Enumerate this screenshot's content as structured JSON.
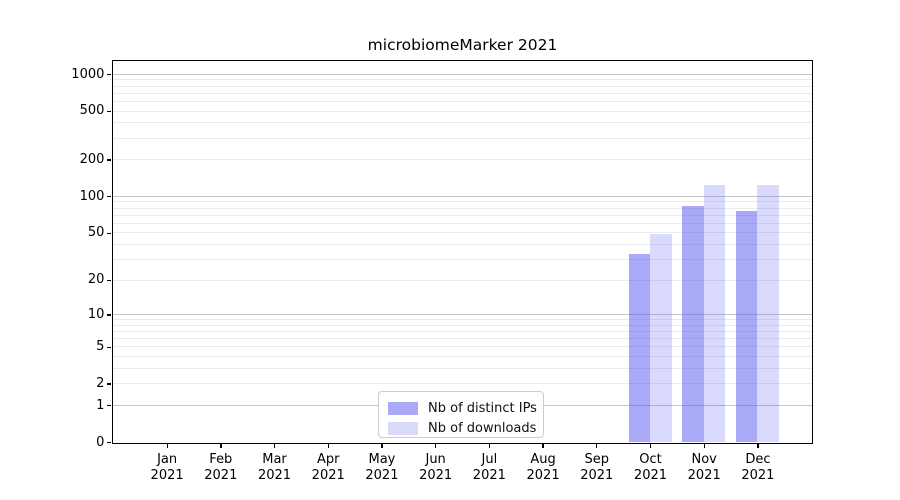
{
  "title": "microbiomeMarker 2021",
  "chart_data": {
    "type": "bar",
    "title": "microbiomeMarker 2021",
    "categories": [
      "Jan 2021",
      "Feb 2021",
      "Mar 2021",
      "Apr 2021",
      "May 2021",
      "Jun 2021",
      "Jul 2021",
      "Aug 2021",
      "Sep 2021",
      "Oct 2021",
      "Nov 2021",
      "Dec 2021"
    ],
    "x_tick_months": [
      "Jan",
      "Feb",
      "Mar",
      "Apr",
      "May",
      "Jun",
      "Jul",
      "Aug",
      "Sep",
      "Oct",
      "Nov",
      "Dec"
    ],
    "x_tick_year": "2021",
    "series": [
      {
        "name": "Nb of distinct IPs",
        "values": [
          0,
          0,
          0,
          0,
          0,
          0,
          0,
          0,
          0,
          33,
          84,
          76
        ],
        "color": "#a9a9f7",
        "rgba": "rgba(90,90,240,0.52)"
      },
      {
        "name": "Nb of downloads",
        "values": [
          0,
          0,
          0,
          0,
          0,
          0,
          0,
          0,
          0,
          49,
          124,
          125
        ],
        "color": "#d9d9f8",
        "rgba": "rgba(90,90,240,0.23)"
      }
    ],
    "xlabel": "",
    "ylabel": "",
    "yscale": "log1p",
    "y_ticks": [
      0,
      1,
      2,
      5,
      10,
      20,
      50,
      100,
      200,
      500,
      1000
    ],
    "y_minor_gridlines": [
      2,
      3,
      4,
      5,
      6,
      7,
      8,
      9,
      20,
      30,
      40,
      50,
      60,
      70,
      80,
      90,
      200,
      300,
      400,
      500,
      600,
      700,
      800,
      900
    ],
    "y_major_gridlines": [
      1,
      10,
      100,
      1000
    ],
    "ylim": [
      0,
      1280
    ],
    "grid": "horizontal",
    "legend_position": "inside bottom-center-left",
    "colors": {
      "grid_major": "#c6c6c6",
      "grid_minor": "#ebebeb",
      "spine": "#000000",
      "text": "#000000",
      "background": "#ffffff"
    }
  }
}
